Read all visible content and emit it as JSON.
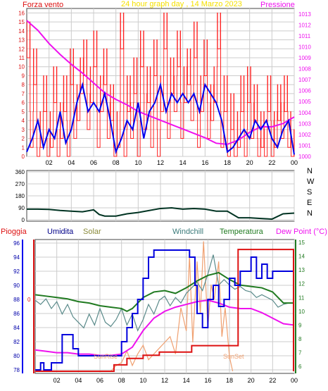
{
  "header": {
    "left_label": "Forza vento",
    "title": "24 hour graph day , 14 Marzo 2023",
    "right_label": "Pressione"
  },
  "direction_labels": [
    "N",
    "W",
    "S",
    "E",
    "N"
  ],
  "legend": {
    "pioggia": "Pioggia",
    "umidita": "Umidita",
    "solar": "Solar",
    "windchill": "Windchill",
    "temperatura": "Temperatura",
    "dewpoint": "Dew Point (°C)"
  },
  "annotations": {
    "sunrise": "SunRise",
    "sunset": "SunSet"
  },
  "rain_axis_label": "0",
  "colors": {
    "wind": "#ff2020",
    "wind_avg": "#0000ee",
    "pressure": "#ee11ee",
    "direction": "#003322",
    "humidity": "#0000dd",
    "temperature": "#207a20",
    "windchill": "#5a8a8a",
    "dewpoint": "#ee11ee",
    "rain": "#dd1111",
    "solar": "#f0a070",
    "grid": "#cccccc",
    "bg": "#ffffff"
  },
  "chart_data": [
    {
      "type": "line",
      "name": "wind-pressure-chart",
      "xlabel": "",
      "ylabel": "Forza vento",
      "xticks": [
        "02",
        "04",
        "06",
        "08",
        "10",
        "12",
        "14",
        "16",
        "18",
        "20",
        "22",
        "00"
      ],
      "x_range": [
        0,
        24
      ],
      "ylim": [
        0,
        16.5
      ],
      "yticks": [
        0,
        1,
        2,
        3,
        4,
        5,
        6,
        7,
        8,
        9,
        10,
        11,
        12,
        13,
        14,
        15,
        16
      ],
      "y2lim": [
        1000,
        1013.5
      ],
      "y2ticks": [
        1000,
        1001,
        1002,
        1003,
        1004,
        1005,
        1006,
        1007,
        1008,
        1009,
        1010,
        1011,
        1012,
        1013
      ],
      "series": [
        {
          "name": "Forza vento",
          "axis": "left",
          "style": "red-spiky",
          "x": [
            0,
            0.3,
            0.6,
            0.9,
            1.2,
            1.5,
            1.8,
            2.1,
            2.4,
            2.7,
            3.0,
            3.3,
            3.6,
            3.9,
            4.2,
            4.5,
            4.8,
            5.1,
            5.4,
            5.7,
            6.0,
            6.3,
            6.6,
            6.9,
            7.2,
            7.5,
            7.8,
            8.1,
            8.4,
            8.7,
            9.0,
            9.3,
            9.6,
            9.9,
            10.2,
            10.5,
            10.8,
            11.1,
            11.4,
            11.7,
            12.0,
            12.3,
            12.6,
            12.9,
            13.2,
            13.5,
            13.8,
            14.1,
            14.4,
            14.7,
            15.0,
            15.3,
            15.6,
            15.9,
            16.2,
            16.5,
            16.8,
            17.1,
            17.4,
            17.7,
            18.0,
            18.3,
            18.6,
            18.9,
            19.2,
            19.5,
            19.8,
            20.1,
            20.4,
            20.7,
            21.0,
            21.3,
            21.6,
            21.9,
            22.2,
            22.5,
            22.8,
            23.1,
            23.4,
            23.7,
            24.0
          ],
          "y": [
            15,
            5,
            12,
            1,
            5,
            9,
            2,
            5,
            10,
            3,
            6,
            9,
            4,
            12,
            6,
            8,
            11,
            13,
            7,
            10,
            14,
            5,
            9,
            12,
            6,
            8,
            1,
            5,
            16,
            3,
            9,
            6,
            11,
            4,
            14,
            7,
            10,
            5,
            13,
            3,
            9,
            16,
            6,
            11,
            9,
            14,
            6,
            10,
            12,
            8,
            15,
            5,
            9,
            13,
            6,
            8,
            10,
            16,
            5,
            9,
            1,
            7,
            0,
            5,
            9,
            3,
            10,
            6,
            8,
            2,
            5,
            3,
            9,
            4,
            5,
            8,
            6,
            9,
            5,
            3,
            0
          ]
        },
        {
          "name": "Media vento",
          "axis": "left",
          "style": "blue",
          "x": [
            0,
            0.5,
            1.0,
            1.5,
            2.0,
            2.5,
            3.0,
            3.5,
            4.0,
            4.5,
            5.0,
            5.5,
            6.0,
            6.5,
            7.0,
            7.5,
            8.0,
            8.5,
            9.0,
            9.5,
            10.0,
            10.5,
            11.0,
            11.5,
            12.0,
            12.5,
            13.0,
            13.5,
            14.0,
            14.5,
            15.0,
            15.5,
            16.0,
            16.5,
            17.0,
            17.5,
            18.0,
            18.5,
            19.0,
            19.5,
            20.0,
            20.5,
            21.0,
            21.5,
            22.0,
            22.5,
            23.0,
            23.5,
            24.0
          ],
          "y": [
            0.5,
            2,
            4,
            1,
            3,
            2,
            5,
            1.5,
            3,
            6,
            8,
            5,
            6,
            5,
            7,
            4,
            0.5,
            2,
            4,
            3,
            6,
            2,
            5,
            6,
            8,
            5,
            7,
            6,
            7,
            6,
            7,
            5,
            8,
            7,
            6,
            4,
            0.5,
            1,
            2,
            3,
            2,
            4,
            3,
            4,
            2,
            1,
            3,
            4,
            0.2
          ]
        },
        {
          "name": "Pressione",
          "axis": "right",
          "style": "magenta",
          "x": [
            0,
            1,
            2,
            3,
            4,
            5,
            6,
            7,
            8,
            9,
            10,
            11,
            12,
            13,
            14,
            15,
            16,
            17,
            18,
            19,
            20,
            21,
            22,
            23,
            24
          ],
          "y": [
            1012.4,
            1011.5,
            1010.3,
            1009.3,
            1008.4,
            1007.6,
            1006.7,
            1005.8,
            1005.2,
            1004.7,
            1004.1,
            1003.7,
            1003.3,
            1002.9,
            1002.5,
            1002.1,
            1001.7,
            1001.2,
            1001.1,
            1001.5,
            1002.2,
            1002.7,
            1002.7,
            1003.0,
            1003.6
          ]
        }
      ]
    },
    {
      "type": "line",
      "name": "wind-direction-chart",
      "xlabel": "",
      "ylabel": "",
      "yticks": [
        0,
        90,
        180,
        270,
        360
      ],
      "ylim": [
        0,
        360
      ],
      "x_range": [
        0,
        24
      ],
      "series": [
        {
          "name": "Direzione vento",
          "x": [
            0,
            1,
            2,
            3,
            4,
            5,
            6,
            6.5,
            7,
            8,
            9,
            10,
            11,
            12,
            13,
            14,
            15,
            16,
            17,
            18,
            19,
            20,
            21,
            22,
            23,
            24
          ],
          "y": [
            80,
            80,
            78,
            70,
            65,
            60,
            75,
            40,
            28,
            28,
            45,
            55,
            70,
            85,
            90,
            80,
            85,
            80,
            65,
            65,
            15,
            15,
            10,
            5,
            45,
            50
          ]
        }
      ]
    },
    {
      "type": "line",
      "name": "humidity-temperature-chart",
      "xlabel": "",
      "ylabel": "Umidita",
      "xticks": [
        "02",
        "04",
        "06",
        "08",
        "10",
        "12",
        "14",
        "16",
        "18",
        "20",
        "22",
        "00"
      ],
      "x_range": [
        0,
        24
      ],
      "ylim": [
        77.5,
        96.5
      ],
      "yticks": [
        78,
        80,
        82,
        84,
        86,
        88,
        90,
        92,
        94,
        96
      ],
      "y2lim": [
        5.5,
        15.2
      ],
      "y2ticks": [
        6,
        7,
        8,
        9,
        10,
        11,
        12,
        13,
        14,
        15
      ],
      "series": [
        {
          "name": "Umidita",
          "axis": "left",
          "x": [
            0,
            0.5,
            0.8,
            1.5,
            2.0,
            2.5,
            3.0,
            3.5,
            4.0,
            5.0,
            6.0,
            7.0,
            7.5,
            8.0,
            8.5,
            9.0,
            9.5,
            10.0,
            10.5,
            11.0,
            12.0,
            13.0,
            14.0,
            14.3,
            14.8,
            15.0,
            15.5,
            16.0,
            16.5,
            17.0,
            17.5,
            18.0,
            18.5,
            19.0,
            19.5,
            20.0,
            20.5,
            21.0,
            21.5,
            22.0,
            22.5,
            23.0,
            23.5,
            24.0
          ],
          "y": [
            78,
            79,
            78,
            79,
            79,
            83,
            83,
            81,
            80,
            80,
            80,
            80,
            80,
            82,
            84,
            86,
            88,
            91,
            94,
            95,
            95,
            95,
            95,
            94,
            90,
            86,
            84,
            88,
            90,
            87,
            88,
            91,
            90,
            92,
            92,
            94,
            91,
            93,
            91,
            92,
            92,
            92,
            92,
            92
          ]
        },
        {
          "name": "Temperatura",
          "axis": "right",
          "x": [
            0,
            1,
            2,
            3,
            4,
            5,
            6,
            7,
            8,
            8.5,
            9,
            10,
            11,
            12,
            13,
            14,
            15,
            16,
            17,
            18,
            19,
            20,
            21,
            22,
            23,
            24
          ],
          "y": [
            11.2,
            11.1,
            11.0,
            10.9,
            10.7,
            10.6,
            10.4,
            10.3,
            10.2,
            10.0,
            10.2,
            11.0,
            11.4,
            11.5,
            11.3,
            11.7,
            12.2,
            12.6,
            12.8,
            12.3,
            11.9,
            11.8,
            11.7,
            11.4,
            10.6,
            10.6
          ]
        },
        {
          "name": "Windchill",
          "axis": "right",
          "x": [
            0,
            0.5,
            1,
            1.5,
            2,
            2.5,
            3,
            3.5,
            4,
            4.5,
            5,
            5.5,
            6,
            6.5,
            7,
            7.5,
            8,
            8.5,
            9,
            9.5,
            10,
            10.5,
            11,
            11.5,
            12,
            12.5,
            13,
            13.5,
            14,
            14.5,
            15,
            15.5,
            16,
            16.5,
            17,
            17.5,
            18,
            18.5,
            19,
            19.5,
            20,
            20.5,
            21,
            21.5,
            22,
            22.5,
            23,
            23.5,
            24
          ],
          "y": [
            10.8,
            10.5,
            10.9,
            10.2,
            10.7,
            9.8,
            10.5,
            9.6,
            9.2,
            8.8,
            9.8,
            9.0,
            10.2,
            9.2,
            8.9,
            9.4,
            10.2,
            9.0,
            9.8,
            8.6,
            9.4,
            10.5,
            9.8,
            10.8,
            11.1,
            10.4,
            11.0,
            10.6,
            11.3,
            11.7,
            12.1,
            11.5,
            12.7,
            14.1,
            11.9,
            12.3,
            11.9,
            11.6,
            11.8,
            11.5,
            11.4,
            11.0,
            11.2,
            11.0,
            10.8,
            10.3,
            10.5,
            10.6,
            10.6
          ]
        },
        {
          "name": "Dew Point",
          "axis": "right",
          "x": [
            0,
            1,
            2,
            3,
            4,
            5,
            6,
            7,
            8,
            9,
            10,
            11,
            12,
            13,
            14,
            15,
            16,
            17,
            18,
            19,
            20,
            21,
            22,
            23,
            24
          ],
          "y": [
            7.2,
            7.1,
            7.0,
            7.0,
            6.9,
            6.9,
            6.8,
            6.8,
            6.9,
            7.4,
            8.6,
            9.5,
            10.0,
            10.3,
            10.5,
            10.7,
            10.8,
            10.6,
            10.3,
            10.2,
            10.2,
            9.9,
            9.5,
            9.1,
            9.0
          ]
        },
        {
          "name": "Pioggia",
          "axis": "rain",
          "x": [
            0,
            7.3,
            7.3,
            8.5,
            8.5,
            10.0,
            10.0,
            11.5,
            11.5,
            14.5,
            14.5,
            18.2,
            18.2,
            18.8,
            18.8,
            24
          ],
          "y": [
            0,
            0,
            1,
            1,
            2,
            2,
            2.5,
            2.5,
            3,
            3,
            4,
            4,
            4,
            4,
            19,
            19
          ]
        },
        {
          "name": "Solar",
          "axis": "solar",
          "x": [
            7.0,
            7.5,
            8.0,
            8.5,
            9.0,
            9.5,
            10.0,
            10.5,
            11.0,
            11.5,
            12.0,
            12.5,
            13.0,
            13.5,
            14.0,
            14.3,
            14.6,
            15.0,
            15.3,
            15.6,
            16.0,
            16.3,
            16.6,
            17.0,
            17.3,
            17.6,
            18.0,
            18.3
          ],
          "y": [
            0,
            2,
            3,
            7,
            2,
            6,
            9,
            4,
            6,
            8,
            10,
            12,
            6,
            22,
            14,
            40,
            10,
            38,
            20,
            45,
            15,
            30,
            25,
            38,
            12,
            22,
            5,
            0
          ]
        }
      ]
    }
  ]
}
